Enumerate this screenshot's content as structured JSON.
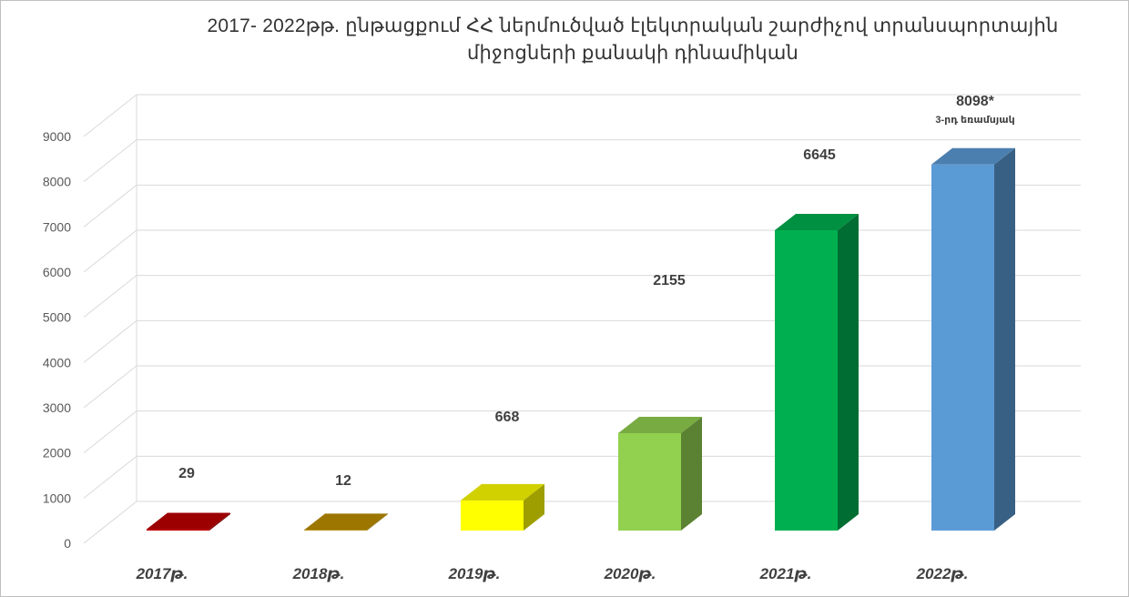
{
  "chart_data": {
    "type": "bar",
    "title_lines": [
      "2017- 2022թթ. ընթացքում  ՀՀ ներմուծված էլեկտրական շարժիչով տրանսպորտային",
      "միջոցների  քանակի  դինամիկան"
    ],
    "categories": [
      "2017թ.",
      "2018թ.",
      "2019թ.",
      "2020թ.",
      "2021թ.",
      "2022թ."
    ],
    "values": [
      29,
      12,
      668,
      2155,
      6645,
      8098
    ],
    "data_labels": [
      "29",
      "12",
      "668",
      "2155",
      "6645",
      "8098*"
    ],
    "data_label_notes": [
      "",
      "",
      "",
      "",
      "",
      "3-րդ եռամսյակ"
    ],
    "bar_colors": [
      "#c00000",
      "#bf9000",
      "#ffff00",
      "#92d050",
      "#00b050",
      "#5b9bd5"
    ],
    "yticks": [
      0,
      1000,
      2000,
      3000,
      4000,
      5000,
      6000,
      7000,
      8000,
      9000
    ],
    "ylim": [
      0,
      9000
    ],
    "grid": true,
    "xlabel": "",
    "ylabel": "",
    "legend": "none"
  }
}
